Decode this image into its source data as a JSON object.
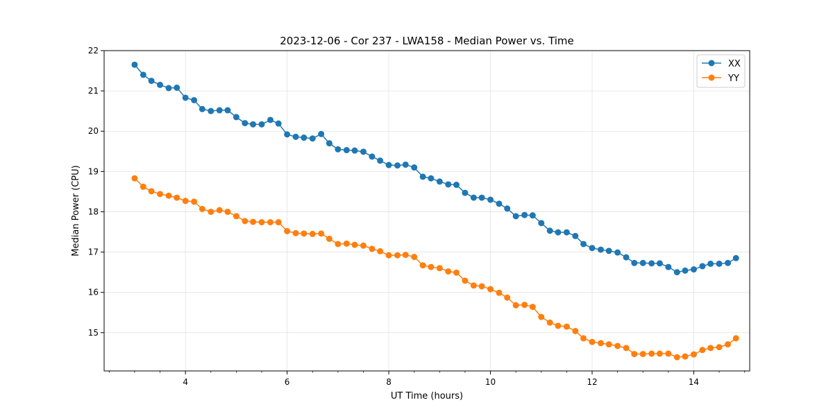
{
  "chart_data": {
    "type": "line",
    "title": "2023-12-06 - Cor 237 - LWA158 - Median Power vs. Time",
    "xlabel": "UT Time (hours)",
    "ylabel": "Median Power (CPU)",
    "xlim": [
      2.4,
      15.1
    ],
    "ylim": [
      14.05,
      22.0
    ],
    "xticks": [
      4,
      6,
      8,
      10,
      12,
      14
    ],
    "yticks": [
      15,
      16,
      17,
      18,
      19,
      20,
      21,
      22
    ],
    "grid": true,
    "legend_position": "top-right",
    "x": [
      3.0,
      3.17,
      3.33,
      3.5,
      3.67,
      3.83,
      4.0,
      4.17,
      4.33,
      4.5,
      4.67,
      4.83,
      5.0,
      5.17,
      5.33,
      5.5,
      5.67,
      5.83,
      6.0,
      6.17,
      6.33,
      6.5,
      6.67,
      6.83,
      7.0,
      7.17,
      7.33,
      7.5,
      7.67,
      7.83,
      8.0,
      8.17,
      8.33,
      8.5,
      8.67,
      8.83,
      9.0,
      9.17,
      9.33,
      9.5,
      9.67,
      9.83,
      10.0,
      10.17,
      10.33,
      10.5,
      10.67,
      10.83,
      11.0,
      11.17,
      11.33,
      11.5,
      11.67,
      11.83,
      12.0,
      12.17,
      12.33,
      12.5,
      12.67,
      12.83,
      13.0,
      13.17,
      13.33,
      13.5,
      13.67,
      13.83,
      14.0,
      14.17,
      14.33,
      14.5,
      14.67,
      14.83
    ],
    "series": [
      {
        "name": "XX",
        "color": "#1f77b4",
        "values": [
          21.65,
          21.4,
          21.25,
          21.15,
          21.07,
          21.08,
          20.83,
          20.77,
          20.55,
          20.5,
          20.52,
          20.52,
          20.35,
          20.2,
          20.17,
          20.17,
          20.28,
          20.19,
          19.92,
          19.86,
          19.84,
          19.82,
          19.93,
          19.7,
          19.55,
          19.53,
          19.52,
          19.49,
          19.37,
          19.27,
          19.16,
          19.15,
          19.17,
          19.1,
          18.87,
          18.83,
          18.75,
          18.68,
          18.67,
          18.47,
          18.35,
          18.35,
          18.3,
          18.2,
          18.08,
          17.89,
          17.92,
          17.91,
          17.72,
          17.53,
          17.49,
          17.49,
          17.4,
          17.2,
          17.1,
          17.06,
          17.03,
          16.99,
          16.87,
          16.73,
          16.73,
          16.72,
          16.72,
          16.63,
          16.5,
          16.54,
          16.57,
          16.65,
          16.71,
          16.71,
          16.73,
          16.85
        ]
      },
      {
        "name": "YY",
        "color": "#ff7f0e",
        "values": [
          18.83,
          18.62,
          18.51,
          18.44,
          18.4,
          18.35,
          18.27,
          18.25,
          18.07,
          18.0,
          18.04,
          18.0,
          17.89,
          17.77,
          17.75,
          17.74,
          17.74,
          17.74,
          17.52,
          17.47,
          17.46,
          17.45,
          17.46,
          17.33,
          17.2,
          17.21,
          17.18,
          17.16,
          17.08,
          17.02,
          16.92,
          16.92,
          16.93,
          16.88,
          16.67,
          16.63,
          16.6,
          16.52,
          16.49,
          16.29,
          16.17,
          16.15,
          16.08,
          15.99,
          15.87,
          15.68,
          15.69,
          15.64,
          15.39,
          15.25,
          15.17,
          15.15,
          15.04,
          14.86,
          14.77,
          14.74,
          14.71,
          14.67,
          14.62,
          14.47,
          14.47,
          14.48,
          14.48,
          14.48,
          14.39,
          14.41,
          14.46,
          14.57,
          14.62,
          14.64,
          14.71,
          14.86
        ]
      }
    ]
  }
}
